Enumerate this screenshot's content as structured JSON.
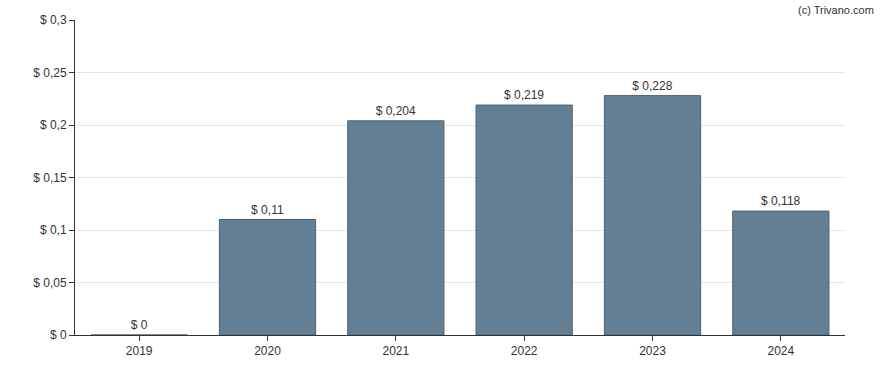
{
  "chart_data": {
    "type": "bar",
    "categories": [
      "2019",
      "2020",
      "2021",
      "2022",
      "2023",
      "2024"
    ],
    "values": [
      0,
      0.11,
      0.204,
      0.219,
      0.228,
      0.118
    ],
    "value_labels": [
      "$ 0",
      "$ 0,11",
      "$ 0,204",
      "$ 0,219",
      "$ 0,228",
      "$ 0,118"
    ],
    "data_labels": true,
    "color": "#647f93",
    "ylim": [
      0,
      0.3
    ],
    "yticks": [
      {
        "value": 0,
        "label": "$ 0"
      },
      {
        "value": 0.05,
        "label": "$ 0,05"
      },
      {
        "value": 0.1,
        "label": "$ 0,1"
      },
      {
        "value": 0.15,
        "label": "$ 0,15"
      },
      {
        "value": 0.2,
        "label": "$ 0,2"
      },
      {
        "value": 0.25,
        "label": "$ 0,25"
      },
      {
        "value": 0.3,
        "label": "$ 0,3"
      }
    ],
    "grid": true,
    "annotations": [
      "(c) Trivano.com"
    ]
  }
}
